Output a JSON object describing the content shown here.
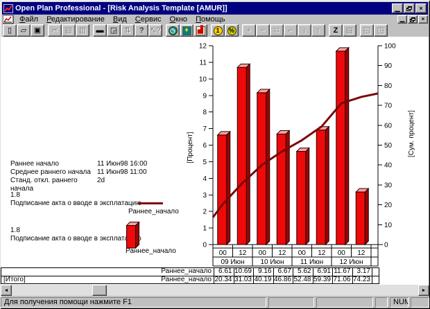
{
  "window": {
    "title": "Open Plan Professional - [Risk Analysis Template [AMUR]]",
    "accent": "#000080",
    "controls": {
      "minimize": "▁",
      "restore": "",
      "close": "×"
    }
  },
  "menu": {
    "items": [
      {
        "label": "Файл"
      },
      {
        "label": "Редактирование"
      },
      {
        "label": "Вид"
      },
      {
        "label": "Сервис"
      },
      {
        "label": "Окно"
      },
      {
        "label": "Помощь"
      }
    ]
  },
  "toolbar": {
    "groups": [
      {
        "buttons": [
          {
            "name": "new",
            "glyph": "▯",
            "enabled": true
          },
          {
            "name": "open",
            "glyph": "▱",
            "enabled": true
          },
          {
            "name": "save",
            "glyph": "▣",
            "enabled": true
          }
        ]
      },
      {
        "buttons": [
          {
            "name": "cut",
            "glyph": "✂",
            "enabled": false
          },
          {
            "name": "copy",
            "glyph": "▤",
            "enabled": false
          },
          {
            "name": "paste",
            "glyph": "▥",
            "enabled": false
          }
        ]
      },
      {
        "buttons": [
          {
            "name": "print",
            "glyph": "▬",
            "enabled": true
          },
          {
            "name": "print-preview",
            "glyph": "◲",
            "enabled": true
          },
          {
            "name": "update-data",
            "glyph": "⇅",
            "enabled": false
          },
          {
            "name": "help",
            "glyph": "?",
            "enabled": true
          },
          {
            "name": "context-help",
            "glyph": "↖?",
            "enabled": false
          }
        ]
      },
      {
        "buttons": [
          {
            "name": "time-analysis",
            "glyph": "◷",
            "enabled": true,
            "shape": "circle",
            "fg": "#ffffff",
            "bg": "#008080"
          },
          {
            "name": "resource-analysis",
            "glyph": "♦",
            "enabled": true,
            "shape": "square",
            "fg": "#ffd700",
            "bg": "#008080"
          },
          {
            "name": "risk-analysis",
            "glyph": "▟",
            "enabled": true,
            "shape": "square",
            "fg": "#cc0000",
            "bg": "#ffffc8"
          }
        ]
      },
      {
        "buttons": [
          {
            "name": "cost",
            "glyph": "1",
            "enabled": true,
            "shape": "circle",
            "fg": "#000000",
            "bg": "#ffd700"
          },
          {
            "name": "percent",
            "glyph": "%",
            "enabled": true,
            "shape": "circle",
            "fg": "#000000",
            "bg": "#c8d400"
          }
        ]
      },
      {
        "buttons": [
          {
            "name": "add-activity",
            "glyph": "+",
            "enabled": false
          },
          {
            "name": "delete-activity",
            "glyph": "−",
            "enabled": false
          },
          {
            "name": "link-activities",
            "glyph": "∷",
            "enabled": false
          },
          {
            "name": "steps",
            "glyph": "⌐",
            "enabled": false
          },
          {
            "name": "move-down",
            "glyph": "↓",
            "enabled": false
          },
          {
            "name": "move-up",
            "glyph": "↑",
            "enabled": false
          }
        ]
      },
      {
        "buttons": [
          {
            "name": "zoom-z",
            "glyph": "Z",
            "enabled": true
          },
          {
            "name": "notes",
            "glyph": "▤",
            "enabled": false
          }
        ]
      },
      {
        "buttons": [
          {
            "name": "shrink-view",
            "glyph": "◱",
            "enabled": false
          },
          {
            "name": "expand-view",
            "glyph": "◳",
            "enabled": false
          }
        ]
      }
    ]
  },
  "stats": {
    "rows": [
      {
        "label": "Раннее начало",
        "value": "11 Июн98 16:00"
      },
      {
        "label": "Среднее раннего начала",
        "value": "11 Июн98 11:00"
      },
      {
        "label": "Станд. откл.  раннего начала",
        "value": "2d"
      }
    ]
  },
  "legend": {
    "line_entry": {
      "value": "1.8",
      "task": "Подписание акта о вводе в эксплатацию",
      "series": "Раннее_начало"
    },
    "bar_entry": {
      "value": "1.8",
      "task": "Подписание акта о вводе в эксплатацию",
      "series": "Раннее_начало"
    }
  },
  "chart_data": {
    "type": "bar",
    "title": "",
    "categories": [
      "00",
      "12",
      "00",
      "12",
      "00",
      "12",
      "00",
      "12"
    ],
    "category_groups": [
      {
        "label": "09 Июн",
        "span": 2
      },
      {
        "label": "10 Июн",
        "span": 2
      },
      {
        "label": "11 Июн",
        "span": 2
      },
      {
        "label": "12 Июн",
        "span": 2
      }
    ],
    "series": [
      {
        "name": "Раннее_начало",
        "type": "bar",
        "axis": "left",
        "color": "#ee0a0a",
        "values": [
          6.61,
          10.69,
          9.16,
          6.67,
          5.62,
          6.91,
          11.67,
          3.17
        ]
      },
      {
        "name": "Раннее_начало",
        "type": "line",
        "axis": "right",
        "color": "#7c0606",
        "values": [
          20.34,
          31.03,
          40.19,
          46.86,
          52.48,
          59.39,
          71.06,
          74.23
        ],
        "edge_start": 13.7,
        "edge_end": 76
      }
    ],
    "left_axis": {
      "label": "[Процент]",
      "min": 0,
      "max": 12,
      "step": 1
    },
    "right_axis": {
      "label": "[Сум. процент]",
      "min": 0,
      "max": 100,
      "step": 10
    },
    "grid": false,
    "legend_position": "left"
  },
  "table": {
    "rows": [
      {
        "label": "",
        "series": "Раннее_начало",
        "values": [
          "6.61",
          "10.69",
          "9.16",
          "6.67",
          "5.62",
          "6.91",
          "11.67",
          "3.17"
        ]
      },
      {
        "label": "[Итого]",
        "series": "Раннее_начало",
        "values": [
          "20.34",
          "31.03",
          "40.19",
          "46.86",
          "52.48",
          "59.39",
          "71.06",
          "74.23"
        ]
      }
    ]
  },
  "scrollbar": {
    "left_arrow": "◄",
    "right_arrow": "►"
  },
  "status": {
    "message": "Для получения помощи нажмите F1",
    "indicators": [
      "",
      "",
      "",
      "NUM",
      ""
    ]
  }
}
